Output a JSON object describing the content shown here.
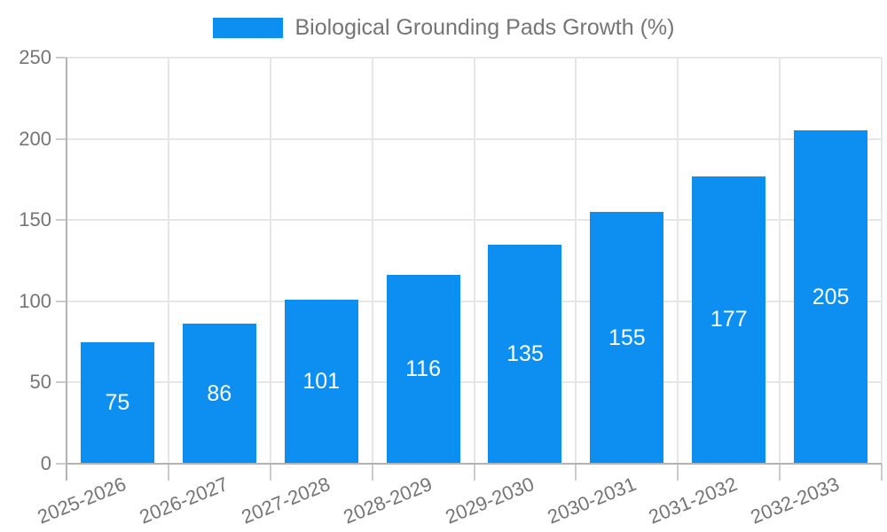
{
  "chart_data": {
    "type": "bar",
    "title": "Biological Grounding Pads Growth (%)",
    "categories": [
      "2025-2026",
      "2026-2027",
      "2027-2028",
      "2028-2029",
      "2029-2030",
      "2030-2031",
      "2031-2032",
      "2032-2033"
    ],
    "values": [
      75,
      86,
      101,
      116,
      135,
      155,
      177,
      205
    ],
    "y_ticks": [
      0,
      50,
      100,
      150,
      200,
      250
    ],
    "ylim": [
      0,
      250
    ],
    "xlabel": "",
    "ylabel": "",
    "legend_position": "top",
    "grid": true,
    "value_labels": "centered-white",
    "colors": {
      "bar": "#0d8ff2",
      "grid": "#e6e6e6",
      "axis_line": "#b3b3b3",
      "tick": "#cccccc",
      "axis_text": "#757575",
      "value_label": "#ffffff"
    }
  }
}
